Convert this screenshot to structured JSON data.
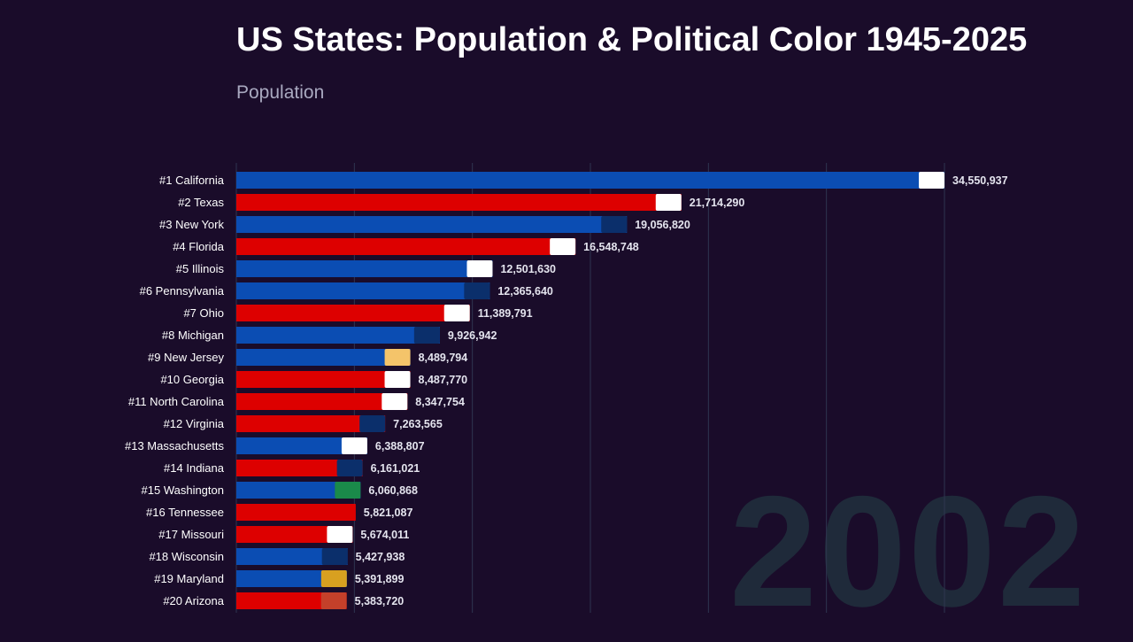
{
  "title": "US States: Population & Political Color 1945-2025",
  "subtitle": "Population",
  "year": "2002",
  "colors": {
    "background": "#1a0c2a",
    "republican": "#dd0000",
    "democrat": "#0b4db3",
    "year": "#1f2a3a",
    "grid": "#2f3550"
  },
  "chart_data": {
    "type": "bar",
    "orientation": "horizontal",
    "grid": true,
    "categories": [
      "#1  California",
      "#2  Texas",
      "#3  New York",
      "#4  Florida",
      "#5  Illinois",
      "#6  Pennsylvania",
      "#7  Ohio",
      "#8  Michigan",
      "#9  New Jersey",
      "#10  Georgia",
      "#11  North Carolina",
      "#12  Virginia",
      "#13  Massachusetts",
      "#14  Indiana",
      "#15  Washington",
      "#16  Tennessee",
      "#17  Missouri",
      "#18  Wisconsin",
      "#19  Maryland",
      "#20  Arizona"
    ],
    "values": [
      34550937,
      21714290,
      19056820,
      16548748,
      12501630,
      12365640,
      11389791,
      9926942,
      8489794,
      8487770,
      8347754,
      7263565,
      6388807,
      6161021,
      6060868,
      5821087,
      5674011,
      5427938,
      5391899,
      5383720
    ],
    "value_labels": [
      "34,550,937",
      "21,714,290",
      "19,056,820",
      "16,548,748",
      "12,501,630",
      "12,365,640",
      "11,389,791",
      "9,926,942",
      "8,489,794",
      "8,487,770",
      "8,347,754",
      "7,263,565",
      "6,388,807",
      "6,161,021",
      "6,060,868",
      "5,821,087",
      "5,674,011",
      "5,427,938",
      "5,391,899",
      "5,383,720"
    ],
    "party": [
      "D",
      "R",
      "D",
      "R",
      "D",
      "D",
      "R",
      "D",
      "D",
      "R",
      "R",
      "R",
      "D",
      "R",
      "D",
      "R",
      "R",
      "D",
      "D",
      "R"
    ],
    "flag_colors": [
      "#ffffff",
      "#ffffff",
      "#0b2f6b",
      "#ffffff",
      "#ffffff",
      "#0b2f6b",
      "#ffffff",
      "#0b2f6b",
      "#f4c46a",
      "#ffffff",
      "#ffffff",
      "#0b2f6b",
      "#ffffff",
      "#0b2f6b",
      "#1a8a4a",
      "#dd0000",
      "#ffffff",
      "#0b2f6b",
      "#d8a020",
      "#c4402a"
    ]
  }
}
